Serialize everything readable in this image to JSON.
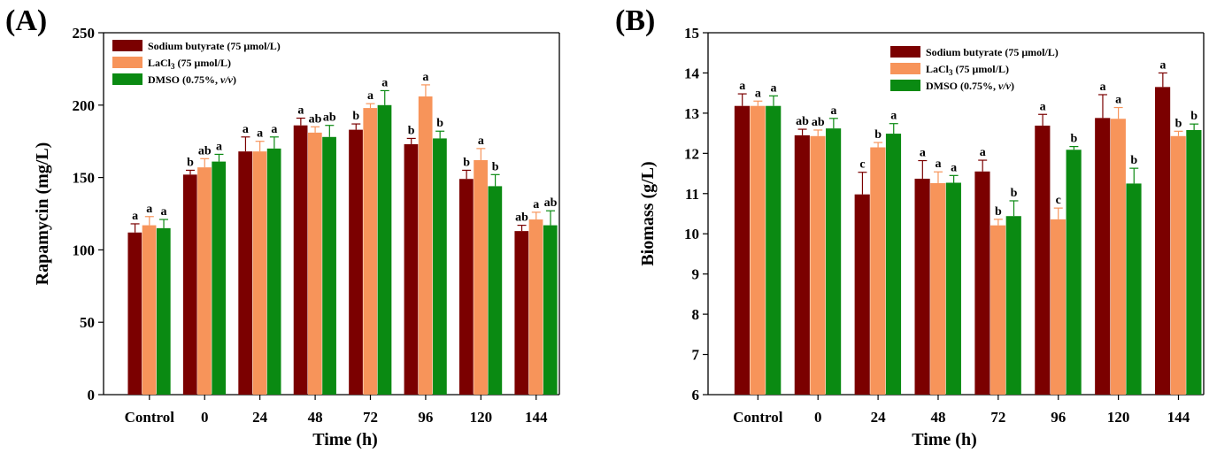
{
  "colors": {
    "Sodium butyrate": "#7b0000",
    "LaCl3": "#f7945a",
    "DMSO": "#0a8a12",
    "error_bar": "#000000"
  },
  "legend_placement": "top-left",
  "chart_data": [
    {
      "panel_label": "(A)",
      "type": "bar",
      "xlabel": "Time (h)",
      "ylabel": "Rapamycin (mg/L)",
      "ylim": [
        0,
        250
      ],
      "yticks": [
        "0",
        "50",
        "100",
        "150",
        "200",
        "250"
      ],
      "categories": [
        "Control",
        "0",
        "24",
        "48",
        "72",
        "96",
        "120",
        "144"
      ],
      "legend": {
        "placement": "top-left",
        "entries": [
          {
            "text": "Sodium butyrate (75 μmol/L)",
            "parts": [
              "Sodium butyrate (75 μmol/L)"
            ]
          },
          {
            "text": "LaCl3 (75 μmol/L)",
            "parts": [
              "LaCl",
              "3",
              " (75 μmol/L)"
            ]
          },
          {
            "text": "DMSO (0.75%, v/v)",
            "parts": [
              "DMSO (0.75%, ",
              "v/v",
              ")"
            ]
          }
        ]
      },
      "series": [
        {
          "key": "Sodium butyrate",
          "values": [
            112,
            152,
            168,
            186,
            183,
            173,
            149,
            113
          ],
          "errors": [
            6,
            3,
            10,
            5,
            4,
            4,
            6,
            4
          ],
          "labels": [
            "a",
            "b",
            "a",
            "a",
            "b",
            "b",
            "b",
            "ab"
          ]
        },
        {
          "key": "LaCl3",
          "values": [
            117,
            157,
            168,
            181,
            198,
            206,
            162,
            121
          ],
          "errors": [
            6,
            6,
            7,
            4,
            3,
            8,
            8,
            5
          ],
          "labels": [
            "a",
            "ab",
            "a",
            "ab",
            "a",
            "a",
            "a",
            "a"
          ]
        },
        {
          "key": "DMSO",
          "values": [
            115,
            161,
            170,
            178,
            200,
            177,
            144,
            117
          ],
          "errors": [
            6,
            5,
            8,
            8,
            10,
            5,
            8,
            10
          ],
          "labels": [
            "a",
            "a",
            "a",
            "ab",
            "a",
            "b",
            "b",
            "ab"
          ]
        }
      ]
    },
    {
      "panel_label": "(B)",
      "type": "bar",
      "xlabel": "Time (h)",
      "ylabel": "Biomass (g/L)",
      "ylim": [
        6,
        15
      ],
      "yticks": [
        "6",
        "7",
        "8",
        "9",
        "10",
        "11",
        "12",
        "13",
        "14",
        "15"
      ],
      "categories": [
        "Control",
        "0",
        "24",
        "48",
        "72",
        "96",
        "120",
        "144"
      ],
      "legend": {
        "placement": "top-right",
        "entries": [
          {
            "text": "Sodium butyrate (75 μmol/L)",
            "parts": [
              "Sodium butyrate (75 μmol/L)"
            ]
          },
          {
            "text": "LaCl3 (75 μmol/L)",
            "parts": [
              "LaCl",
              "3",
              " (75 μmol/L)"
            ]
          },
          {
            "text": "DMSO (0.75%, v/v)",
            "parts": [
              "DMSO (0.75%, ",
              "v/v",
              ")"
            ]
          }
        ]
      },
      "series": [
        {
          "key": "Sodium butyrate",
          "values": [
            13.18,
            12.45,
            10.98,
            11.37,
            11.55,
            12.69,
            12.88,
            13.65
          ],
          "errors": [
            0.3,
            0.15,
            0.55,
            0.45,
            0.28,
            0.28,
            0.58,
            0.35
          ],
          "labels": [
            "a",
            "ab",
            "c",
            "a",
            "a",
            "a",
            "a",
            "a"
          ]
        },
        {
          "key": "LaCl3",
          "values": [
            13.18,
            12.43,
            12.15,
            11.26,
            10.21,
            10.36,
            12.86,
            12.43
          ],
          "errors": [
            0.12,
            0.15,
            0.12,
            0.28,
            0.15,
            0.28,
            0.28,
            0.12
          ],
          "labels": [
            "a",
            "ab",
            "b",
            "a",
            "b",
            "c",
            "a",
            "b"
          ]
        },
        {
          "key": "DMSO",
          "values": [
            13.18,
            12.62,
            12.49,
            11.27,
            10.44,
            12.09,
            11.25,
            12.58
          ],
          "errors": [
            0.25,
            0.25,
            0.25,
            0.18,
            0.38,
            0.08,
            0.38,
            0.15
          ],
          "labels": [
            "a",
            "a",
            "a",
            "a",
            "b",
            "b",
            "b",
            "b"
          ]
        }
      ]
    }
  ]
}
